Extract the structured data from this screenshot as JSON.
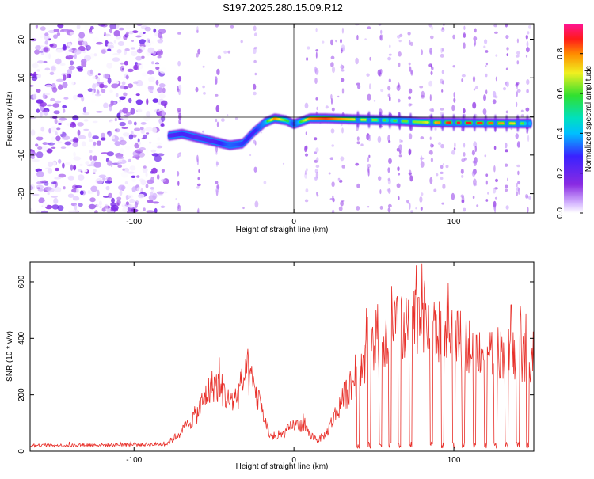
{
  "figure": {
    "title": "S197.2025.280.15.09.R12",
    "accent_color": "#e8302a"
  },
  "chart_data": [
    {
      "type": "heatmap",
      "title": "S197.2025.280.15.09.R12",
      "xlabel": "Height of straight line (km)",
      "ylabel": "Frequency (Hz)",
      "xlim": [
        -165,
        150
      ],
      "ylim": [
        -25,
        24
      ],
      "xticks": [
        -100,
        0,
        100
      ],
      "yticks": [
        -20,
        -10,
        0,
        10,
        20
      ],
      "colorbar": {
        "label": "Normalized spectral amplitude",
        "range": [
          0.0,
          0.95
        ],
        "ticks": [
          0.0,
          0.2,
          0.4,
          0.6,
          0.8
        ],
        "colormap": "rainbow (white → violet → blue → cyan → green → yellow → red → magenta)"
      },
      "ridge": {
        "x": [
          -78,
          -70,
          -60,
          -50,
          -40,
          -32,
          -25,
          -18,
          -12,
          -5,
          0,
          10,
          20,
          40,
          60,
          80,
          100,
          120,
          140,
          148
        ],
        "freq": [
          -5,
          -4.5,
          -5.5,
          -6.5,
          -7.5,
          -7,
          -4,
          -1.5,
          -0.5,
          -1,
          -2,
          -0.5,
          -0.5,
          -0.8,
          -1,
          -1.5,
          -1.6,
          -1.7,
          -1.8,
          -1.8
        ],
        "amplitude": [
          0.3,
          0.35,
          0.3,
          0.32,
          0.45,
          0.4,
          0.35,
          0.5,
          0.8,
          0.6,
          0.4,
          0.8,
          0.85,
          0.7,
          0.6,
          0.65,
          0.9,
          0.85,
          0.7,
          0.5
        ]
      },
      "noise_region": {
        "x": [
          -165,
          -80
        ],
        "amplitude": [
          0.0,
          0.2
        ]
      }
    },
    {
      "type": "line",
      "xlabel": "Height of straight line (km)",
      "ylabel": "SNR (10 * v/v)",
      "xlim": [
        -165,
        150
      ],
      "ylim": [
        0,
        670
      ],
      "xticks": [
        -100,
        0,
        100
      ],
      "yticks": [
        0,
        200,
        400,
        600
      ],
      "color": "#e8302a",
      "envelope": {
        "x": [
          -165,
          -80,
          -70,
          -60,
          -55,
          -50,
          -45,
          -40,
          -35,
          -30,
          -25,
          -20,
          -15,
          -10,
          -5,
          0,
          5,
          10,
          15,
          20,
          25,
          30,
          35,
          40,
          45,
          50,
          55,
          60,
          65,
          70,
          75,
          80,
          85,
          90,
          95,
          100,
          105,
          110,
          115,
          120,
          125,
          130,
          135,
          140,
          145,
          150
        ],
        "y": [
          20,
          25,
          70,
          140,
          200,
          240,
          220,
          170,
          200,
          280,
          230,
          140,
          55,
          45,
          70,
          95,
          90,
          60,
          40,
          60,
          120,
          180,
          230,
          280,
          330,
          370,
          400,
          420,
          440,
          430,
          460,
          490,
          450,
          420,
          420,
          400,
          390,
          380,
          370,
          360,
          360,
          350,
          345,
          340,
          335,
          330
        ]
      },
      "notable_peaks": [
        {
          "x": -30,
          "y": 320
        },
        {
          "x": 78,
          "y": 545
        },
        {
          "x": 80,
          "y": 665
        }
      ],
      "dropouts_x": [
        40,
        47,
        54,
        60,
        66,
        73,
        86,
        93,
        100,
        106,
        113,
        120,
        126,
        133,
        140,
        146
      ],
      "baseline_noise": 20
    }
  ]
}
